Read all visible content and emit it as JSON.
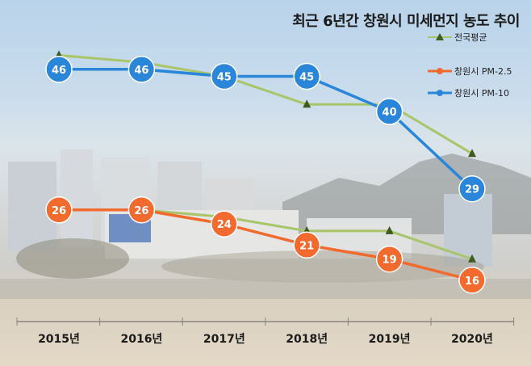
{
  "chart_data": {
    "type": "line",
    "title": "최근 6년간 창원시 미세먼지 농도 추이",
    "categories": [
      "2015년",
      "2016년",
      "2017년",
      "2018년",
      "2019년",
      "2020년"
    ],
    "legend_placement": "top-right",
    "grid": false,
    "series": [
      {
        "name": "전국평균",
        "color": "#a9c56a",
        "marker": "triangle",
        "values": [
          48,
          47,
          45,
          41,
          41,
          34
        ],
        "labels_shown": false
      },
      {
        "name": "창원시 PM-2.5",
        "color": "#f26a2e",
        "marker": "circle",
        "values": [
          26,
          26,
          24,
          21,
          19,
          16
        ],
        "labels_shown": true
      },
      {
        "name": "창원시 PM-10",
        "color": "#2a86d9",
        "marker": "circle",
        "values": [
          46,
          46,
          45,
          45,
          40,
          29
        ],
        "labels_shown": true
      },
      {
        "name": "전국평균",
        "color": "#a9c56a",
        "marker": "triangle",
        "values": [
          null,
          26,
          25,
          23,
          23,
          19
        ],
        "labels_shown": false
      }
    ]
  }
}
